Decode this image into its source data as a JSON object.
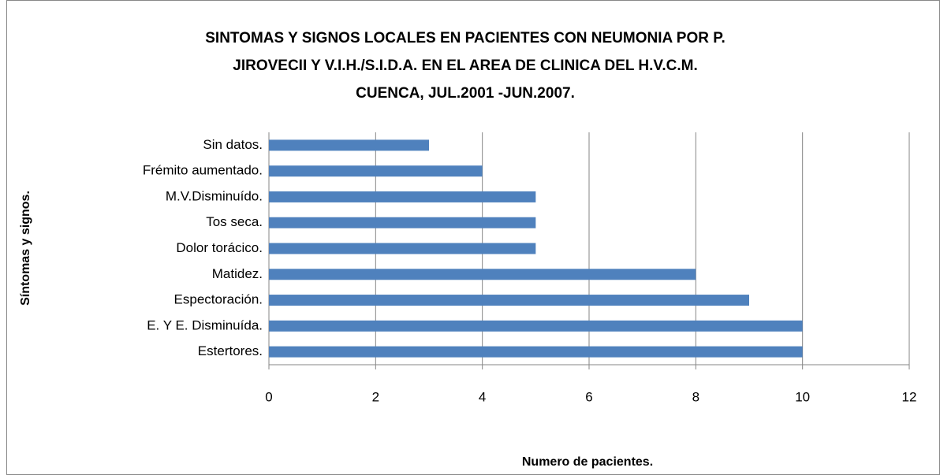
{
  "chart_data": {
    "type": "bar",
    "orientation": "horizontal",
    "title": [
      "SINTOMAS Y SIGNOS LOCALES EN PACIENTES CON NEUMONIA POR P.",
      "JIROVECII Y V.I.H./S.I.D.A. EN EL AREA DE CLINICA DEL H.V.C.M.",
      "CUENCA, JUL.2001 -JUN.2007."
    ],
    "x_label": "Numero de pacientes.",
    "y_label": "Síntomas y signos.",
    "categories": [
      "Sin datos.",
      "Frémito aumentado.",
      "M.V.Disminuído.",
      "Tos seca.",
      "Dolor torácico.",
      "Matidez.",
      "Espectoración.",
      "E. Y E. Disminuída.",
      "Estertores."
    ],
    "values": [
      3,
      4,
      5,
      5,
      5,
      8,
      9,
      10,
      10
    ],
    "color": "#4f81bd",
    "xlim": [
      0,
      12
    ],
    "xticks": [
      0,
      2,
      4,
      6,
      8,
      10,
      12
    ],
    "grid": true
  }
}
